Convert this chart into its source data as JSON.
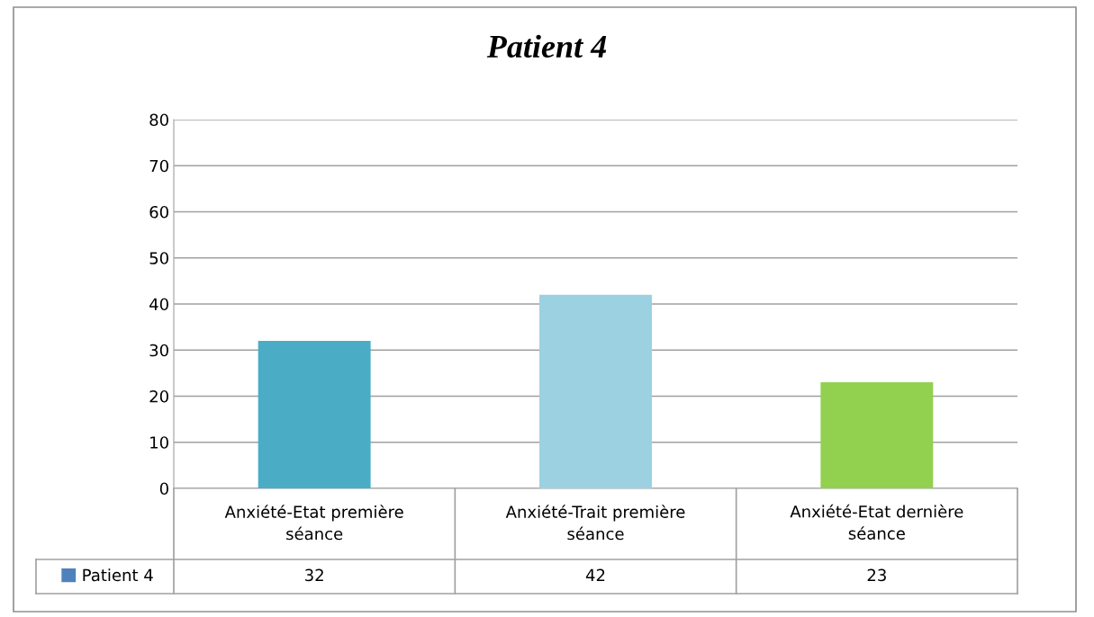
{
  "chart_data": {
    "type": "bar",
    "title": "Patient 4",
    "categories": [
      "Anxiété-Etat première séance",
      "Anxiété-Trait première séance",
      "Anxiété-Etat dernière séance"
    ],
    "series": [
      {
        "name": "Patient 4",
        "color": "#4f81bd",
        "colors": [
          "#4bacc6",
          "#9bd1e0",
          "#92d050"
        ],
        "values": [
          32,
          42,
          23
        ]
      }
    ],
    "ylim": [
      0,
      80
    ],
    "yticks": [
      0,
      10,
      20,
      30,
      40,
      50,
      60,
      70,
      80
    ],
    "grid": "y",
    "data_labels": true,
    "legend": "bottom"
  }
}
